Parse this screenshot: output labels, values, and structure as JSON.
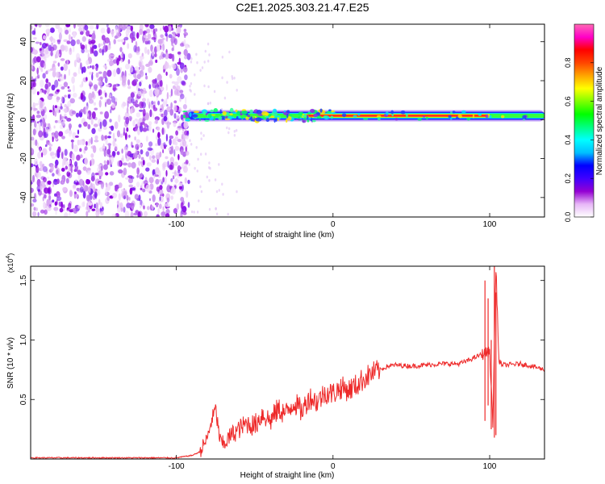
{
  "figure": {
    "title": "C2E1.2025.303.21.47.E25"
  },
  "chart_data": [
    {
      "type": "heatmap",
      "name": "spectrogram",
      "xlabel": "Height of straight line (km)",
      "ylabel": "Frequency (Hz)",
      "xlim": [
        -193,
        135
      ],
      "ylim": [
        -50,
        49
      ],
      "xticks": [
        -100,
        0,
        100
      ],
      "xtick_labels": [
        "-100",
        "0",
        "100"
      ],
      "yticks": [
        -40,
        -20,
        0,
        20,
        40
      ],
      "ytick_labels": [
        "-40",
        "-20",
        "0",
        "20",
        "40"
      ],
      "noise_region_x": [
        -193,
        -92
      ],
      "signal_band": {
        "center_frequency_hz": 2,
        "x_start": -95,
        "x_end": 135,
        "strong_segment": [
          -20,
          100
        ]
      },
      "colorbar": {
        "label": "Normalized spectral amplitude",
        "min": 0,
        "max": 1,
        "ticks": [
          0.0,
          0.2,
          0.4,
          0.6,
          0.8
        ],
        "tick_labels": [
          "0.0",
          "0.2",
          "0.4",
          "0.6",
          "0.8"
        ],
        "colors": [
          "#ffffff",
          "#e7b6f7",
          "#9400d3",
          "#3f00ff",
          "#0000ff",
          "#00bfff",
          "#00ffff",
          "#00ff80",
          "#00ff00",
          "#7fff00",
          "#ffff00",
          "#ffa500",
          "#ff4500",
          "#ff0000",
          "#ff00c8",
          "#ff69b4"
        ]
      }
    },
    {
      "type": "line",
      "name": "snr",
      "xlabel": "Height of straight line (km)",
      "ylabel": "SNR (10 * v/v)",
      "y_exponent_label": "(x10",
      "y_exponent_value": "4",
      "y_exponent_close": ")",
      "xlim": [
        -193,
        135
      ],
      "ylim": [
        0,
        1.62
      ],
      "xticks": [
        -100,
        0,
        100
      ],
      "xtick_labels": [
        "-100",
        "0",
        "100"
      ],
      "yticks": [
        0.5,
        1.0,
        1.5
      ],
      "ytick_labels": [
        "0.5",
        "1.0",
        "1.5"
      ],
      "color": "#ee2a2a",
      "x": [
        -193,
        -150,
        -100,
        -90,
        -85,
        -80,
        -78,
        -75,
        -72,
        -70,
        -65,
        -60,
        -55,
        -50,
        -45,
        -40,
        -35,
        -30,
        -25,
        -20,
        -15,
        -10,
        -5,
        0,
        5,
        10,
        15,
        20,
        25,
        30,
        35,
        40,
        50,
        60,
        70,
        80,
        85,
        90,
        95,
        100,
        102,
        104,
        106,
        110,
        120,
        130,
        135
      ],
      "y": [
        0.01,
        0.01,
        0.01,
        0.03,
        0.06,
        0.18,
        0.3,
        0.42,
        0.15,
        0.12,
        0.2,
        0.25,
        0.3,
        0.28,
        0.38,
        0.32,
        0.42,
        0.38,
        0.48,
        0.4,
        0.52,
        0.48,
        0.56,
        0.55,
        0.6,
        0.58,
        0.62,
        0.68,
        0.72,
        0.75,
        0.78,
        0.79,
        0.78,
        0.79,
        0.8,
        0.8,
        0.82,
        0.85,
        0.88,
        0.9,
        0.3,
        1.62,
        0.8,
        0.79,
        0.8,
        0.77,
        0.75
      ],
      "spikes": [
        {
          "x": 97,
          "low": 0.32,
          "high": 1.5
        },
        {
          "x": 99,
          "low": 0.45,
          "high": 1.35
        },
        {
          "x": 101,
          "low": 0.25,
          "high": 1.0
        },
        {
          "x": 103,
          "low": 0.18,
          "high": 1.62
        },
        {
          "x": 104,
          "low": 0.2,
          "high": 1.4
        }
      ]
    }
  ]
}
